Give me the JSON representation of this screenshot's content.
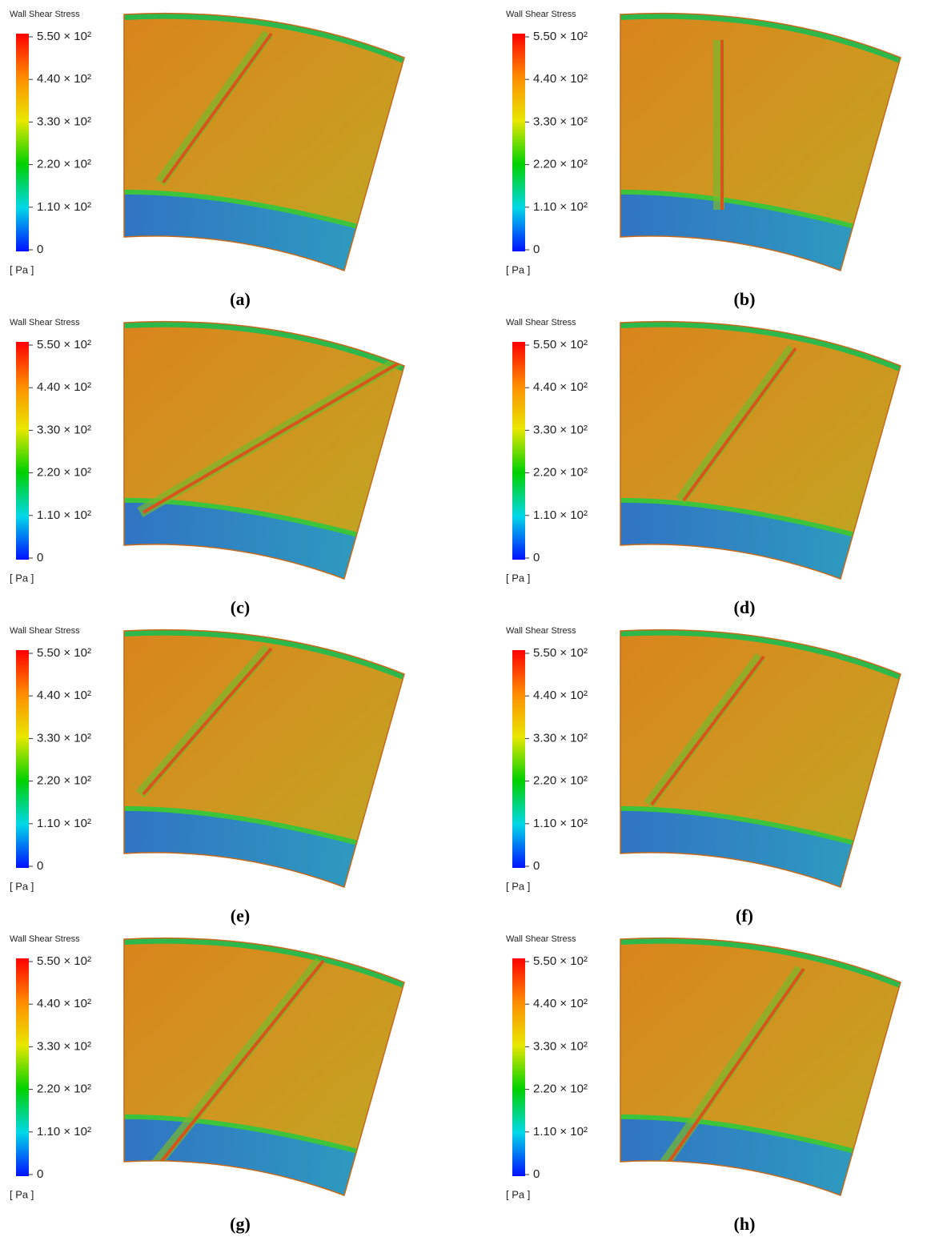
{
  "panels": [
    {
      "title": "Wall Shear Stress",
      "legend": [
        "5.50 × 10²",
        "4.40 × 10²",
        "3.30 × 10²",
        "2.20 × 10²",
        "1.10 × 10²",
        "0"
      ],
      "unit": "[ Pa ]",
      "caption": "(a)"
    },
    {
      "title": "Wall Shear Stress",
      "legend": [
        "5.50 × 10²",
        "4.40 × 10²",
        "3.30 × 10²",
        "2.20 × 10²",
        "1.10 × 10²",
        "0"
      ],
      "unit": "[ Pa ]",
      "caption": "(b)"
    },
    {
      "title": "Wall Shear Stress",
      "legend": [
        "5.50 × 10²",
        "4.40 × 10²",
        "3.30 × 10²",
        "2.20 × 10²",
        "1.10 × 10²",
        "0"
      ],
      "unit": "[ Pa ]",
      "caption": "(c)"
    },
    {
      "title": "Wall Shear Stress",
      "legend": [
        "5.50 × 10²",
        "4.40 × 10²",
        "3.30 × 10²",
        "2.20 × 10²",
        "1.10 × 10²",
        "0"
      ],
      "unit": "[ Pa ]",
      "caption": "(d)"
    },
    {
      "title": "Wall Shear Stress",
      "legend": [
        "5.50 × 10²",
        "4.40 × 10²",
        "3.30 × 10²",
        "2.20 × 10²",
        "1.10 × 10²",
        "0"
      ],
      "unit": "[ Pa ]",
      "caption": "(e)"
    },
    {
      "title": "Wall Shear Stress",
      "legend": [
        "5.50 × 10²",
        "4.40 × 10²",
        "3.30 × 10²",
        "2.20 × 10²",
        "1.10 × 10²",
        "0"
      ],
      "unit": "[ Pa ]",
      "caption": "(f)"
    },
    {
      "title": "Wall Shear Stress",
      "legend": [
        "5.50 × 10²",
        "4.40 × 10²",
        "3.30 × 10²",
        "2.20 × 10²",
        "1.10 × 10²",
        "0"
      ],
      "unit": "[ Pa ]",
      "caption": "(g)"
    },
    {
      "title": "Wall Shear Stress",
      "legend": [
        "5.50 × 10²",
        "4.40 × 10²",
        "3.30 × 10²",
        "2.20 × 10²",
        "1.10 × 10²",
        "0"
      ],
      "unit": "[ Pa ]",
      "caption": "(h)"
    }
  ]
}
